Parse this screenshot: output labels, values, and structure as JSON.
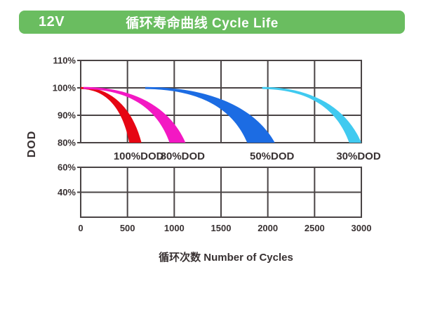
{
  "header": {
    "badge": "12V",
    "title": "循环寿命曲线 Cycle Life",
    "bg_color": "#6abd60",
    "text_color": "#ffffff"
  },
  "chart_data": {
    "type": "area",
    "title": "循环寿命曲线 Cycle Life",
    "xlabel": "循环次数 Number of Cycles",
    "ylabel": "DOD",
    "grid": true,
    "xlim": [
      0,
      3000
    ],
    "x_ticks": [
      0,
      500,
      1000,
      1500,
      2000,
      2500,
      3000
    ],
    "upper_ylim": [
      80,
      110
    ],
    "upper_y_ticks": [
      {
        "label": "110%",
        "value": 110
      },
      {
        "label": "100%",
        "value": 100
      },
      {
        "label": "90%",
        "value": 90
      },
      {
        "label": "80%",
        "value": 80
      }
    ],
    "lower_ylim": [
      20,
      60
    ],
    "lower_y_ticks": [
      {
        "label": "60%",
        "value": 60
      },
      {
        "label": "40%",
        "value": 40
      }
    ],
    "colors": {
      "grid": "#4a4445",
      "text": "#383132"
    },
    "series": [
      {
        "name": "100%DOD",
        "color": "#e60613",
        "start_cycles": 0,
        "start_pct": 100,
        "end_pct": 80,
        "end_cycles": [
          520,
          650
        ]
      },
      {
        "name": "80%DOD",
        "color": "#f318c3",
        "start_cycles": 30,
        "start_pct": 100,
        "end_pct": 80,
        "end_cycles": [
          950,
          1120
        ]
      },
      {
        "name": "50%DOD",
        "color": "#1c6ce3",
        "start_cycles": 690,
        "start_pct": 100,
        "end_pct": 80,
        "end_cycles": [
          1780,
          2075
        ]
      },
      {
        "name": "30%DOD",
        "color": "#40caf0",
        "start_cycles": 1940,
        "start_pct": 100,
        "end_pct": 80,
        "end_cycles": [
          2870,
          3000
        ]
      }
    ]
  }
}
